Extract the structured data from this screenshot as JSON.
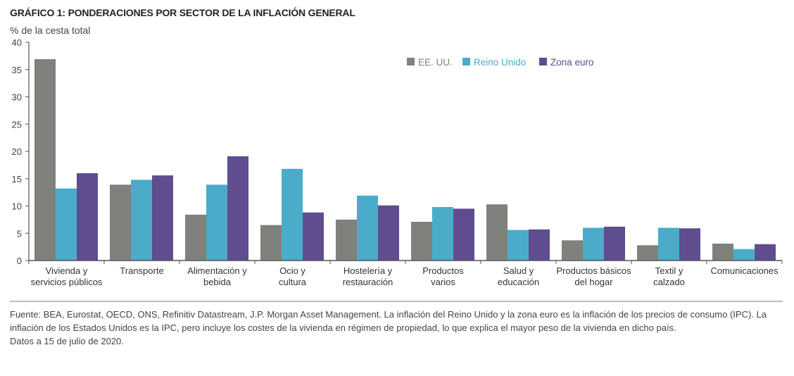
{
  "header": {
    "title": "GRÁFICO 1: PONDERACIONES POR SECTOR DE LA INFLACIÓN GENERAL",
    "unit_label": "% de la cesta total"
  },
  "footer": {
    "source": "Fuente: BEA, Eurostat, OECD, ONS, Refinitiv Datastream, J.P. Morgan Asset Management. La inflación del Reino Unido y la zona euro es la inflación de los precios de consumo (IPC). La inflación de los Estados Unidos es la IPC, pero incluye los costes de la vivienda en régimen de propiedad, lo que explica el mayor peso de la vivienda en dicho país.",
    "date": "Datos a 15 de julio de 2020."
  },
  "chart_data": {
    "type": "bar",
    "title": "GRÁFICO 1: PONDERACIONES POR SECTOR DE LA INFLACIÓN GENERAL",
    "xlabel": "",
    "ylabel": "% de la cesta total",
    "ylim": [
      0,
      40
    ],
    "yticks": [
      0,
      5,
      10,
      15,
      20,
      25,
      30,
      35,
      40
    ],
    "grid": false,
    "legend_position": "top-right",
    "categories": [
      [
        "Vivienda y",
        "servicios públicos"
      ],
      [
        "Transporte"
      ],
      [
        "Alimentación y",
        "bebida"
      ],
      [
        "Ocio y",
        "cultura"
      ],
      [
        "Hostelería y",
        "restauración"
      ],
      [
        "Productos",
        "varios"
      ],
      [
        "Salud y",
        "educación"
      ],
      [
        "Productos básicos",
        "del hogar"
      ],
      [
        "Textil y",
        "calzado"
      ],
      [
        "Comunicaciones"
      ]
    ],
    "series": [
      {
        "name": "EE. UU.",
        "color": "#7f817c",
        "values": [
          36.9,
          13.9,
          8.4,
          6.5,
          7.5,
          7.1,
          10.3,
          3.7,
          2.8,
          3.1
        ]
      },
      {
        "name": "Reino Unido",
        "color": "#4aacc9",
        "values": [
          13.2,
          14.8,
          13.9,
          16.8,
          11.9,
          9.8,
          5.6,
          6.0,
          6.0,
          2.1
        ]
      },
      {
        "name": "Zona euro",
        "color": "#5f4d8f",
        "values": [
          16.0,
          15.6,
          19.1,
          8.8,
          10.1,
          9.5,
          5.7,
          6.2,
          5.9,
          3.0
        ]
      }
    ]
  }
}
